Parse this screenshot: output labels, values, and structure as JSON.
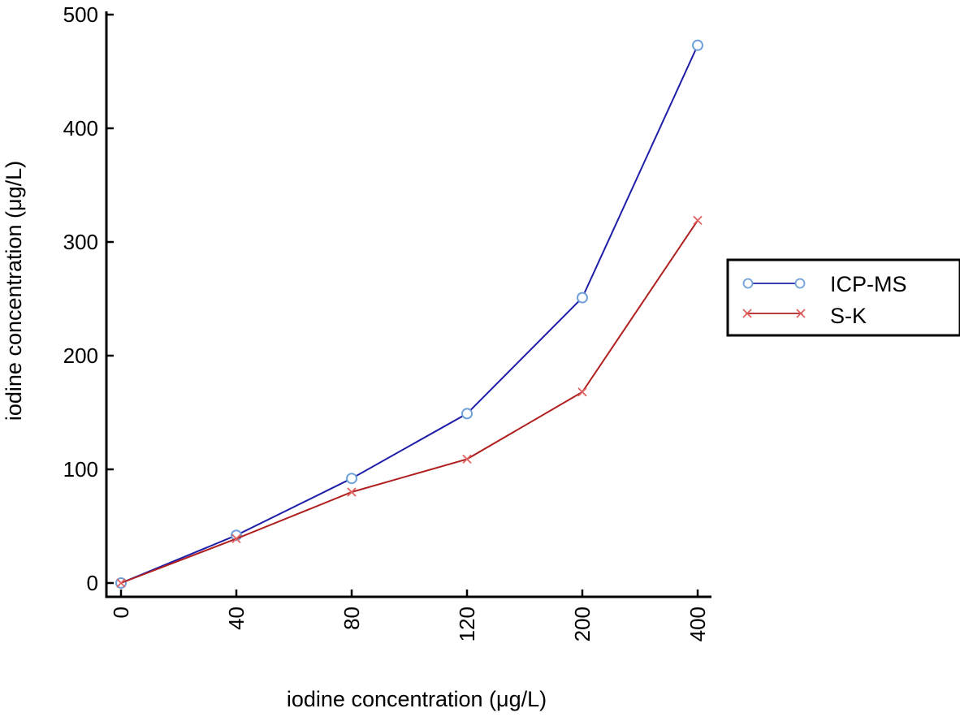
{
  "chart_data": {
    "type": "line",
    "title": "",
    "xlabel": "iodine concentration (μg/L)",
    "ylabel": "iodine concentration (μg/L)",
    "categories": [
      "0",
      "40",
      "80",
      "120",
      "200",
      "400"
    ],
    "ylim": [
      0,
      500
    ],
    "yticks": [
      "0",
      "100",
      "200",
      "300",
      "400",
      "500"
    ],
    "grid": false,
    "legend_position": "right",
    "series": [
      {
        "name": "ICP-MS",
        "values": [
          0,
          42,
          92,
          149,
          251,
          473
        ],
        "color": "#1f1fa8",
        "marker_color": "#6fa0d8",
        "marker": "circle"
      },
      {
        "name": "S-K",
        "values": [
          0,
          39,
          80,
          109,
          168,
          319
        ],
        "color": "#b02020",
        "marker_color": "#e06060",
        "marker": "x"
      }
    ]
  }
}
